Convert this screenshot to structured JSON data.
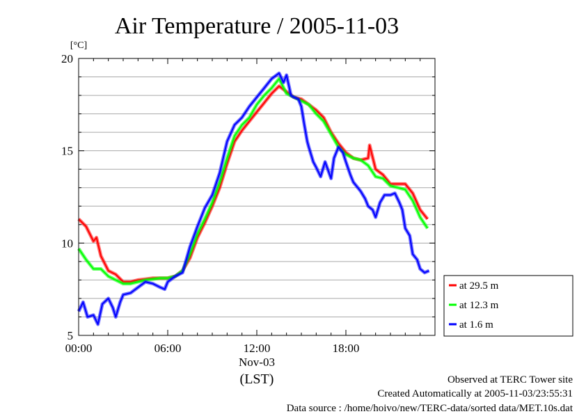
{
  "chart_data": {
    "type": "line",
    "title": "Air Temperature / 2005-11-03",
    "ylabel": "[°C]",
    "xlabel": "(LST)",
    "xlim": [
      0,
      24
    ],
    "ylim": [
      5,
      20
    ],
    "yticks": [
      5,
      10,
      15,
      20
    ],
    "ytick_labels": [
      "5",
      "10",
      "15",
      "20"
    ],
    "xticks": [
      0,
      6,
      12,
      18
    ],
    "xtick_labels": [
      "00:00",
      "06:00",
      "12:00",
      "18:00"
    ],
    "date_label": "Nov-03",
    "grid": true,
    "legend_position": "right",
    "series": [
      {
        "name": "at 29.5 m",
        "color": "#ff0000",
        "x": [
          0,
          0.5,
          1.0,
          1.2,
          1.5,
          2.0,
          2.5,
          3.0,
          3.5,
          4.0,
          4.5,
          5.0,
          5.5,
          6.0,
          6.5,
          7.0,
          7.5,
          8.0,
          8.5,
          9.0,
          9.5,
          10.0,
          10.5,
          11.0,
          11.5,
          12.0,
          12.5,
          13.0,
          13.5,
          14.0,
          14.5,
          15.0,
          15.5,
          16.0,
          16.5,
          17.0,
          17.5,
          18.0,
          18.5,
          19.0,
          19.5,
          19.6,
          20.0,
          20.5,
          21.0,
          21.5,
          22.0,
          22.5,
          23.0,
          23.5
        ],
        "values": [
          11.3,
          10.9,
          10.1,
          10.3,
          9.3,
          8.5,
          8.3,
          7.9,
          7.9,
          8.0,
          8.05,
          8.1,
          8.1,
          8.1,
          8.2,
          8.5,
          9.2,
          10.3,
          11.1,
          12.0,
          13.0,
          14.3,
          15.5,
          16.1,
          16.6,
          17.1,
          17.6,
          18.1,
          18.5,
          18.2,
          17.9,
          17.8,
          17.5,
          17.2,
          16.8,
          16.0,
          15.4,
          14.9,
          14.6,
          14.5,
          14.6,
          15.3,
          14.0,
          13.7,
          13.2,
          13.2,
          13.2,
          12.7,
          11.8,
          11.3
        ]
      },
      {
        "name": "at 12.3 m",
        "color": "#00ff00",
        "x": [
          0,
          0.5,
          1.0,
          1.5,
          2.0,
          2.5,
          3.0,
          3.5,
          4.0,
          4.5,
          5.0,
          5.5,
          6.0,
          6.5,
          7.0,
          7.5,
          8.0,
          8.5,
          9.0,
          9.5,
          10.0,
          10.5,
          11.0,
          11.5,
          12.0,
          12.5,
          13.0,
          13.5,
          14.0,
          14.5,
          15.0,
          15.5,
          16.0,
          16.5,
          17.0,
          17.5,
          18.0,
          18.5,
          19.0,
          19.5,
          20.0,
          20.5,
          21.0,
          21.5,
          22.0,
          22.5,
          23.0,
          23.5
        ],
        "values": [
          9.7,
          9.1,
          8.6,
          8.6,
          8.2,
          8.0,
          7.8,
          7.8,
          7.9,
          8.0,
          8.05,
          8.1,
          8.1,
          8.2,
          8.5,
          9.4,
          10.5,
          11.3,
          12.2,
          13.3,
          14.6,
          15.8,
          16.4,
          16.8,
          17.5,
          18.0,
          18.4,
          18.9,
          18.1,
          17.9,
          17.7,
          17.5,
          17.0,
          16.6,
          15.9,
          15.2,
          14.8,
          14.6,
          14.5,
          14.2,
          13.6,
          13.5,
          13.1,
          13.0,
          12.9,
          12.3,
          11.4,
          10.8
        ]
      },
      {
        "name": "at 1.6 m",
        "color": "#0000ff",
        "x": [
          0,
          0.3,
          0.6,
          1.0,
          1.3,
          1.6,
          2.0,
          2.3,
          2.5,
          2.8,
          3.0,
          3.5,
          4.0,
          4.5,
          5.0,
          5.5,
          5.8,
          6.0,
          6.5,
          7.0,
          7.5,
          8.0,
          8.5,
          9.0,
          9.5,
          10.0,
          10.5,
          11.0,
          11.5,
          12.0,
          12.5,
          13.0,
          13.5,
          13.8,
          14.0,
          14.3,
          14.5,
          14.8,
          15.0,
          15.2,
          15.4,
          15.5,
          15.8,
          16.0,
          16.3,
          16.6,
          17.0,
          17.2,
          17.5,
          17.8,
          18.0,
          18.3,
          18.5,
          18.8,
          19.0,
          19.3,
          19.5,
          19.8,
          20.0,
          20.3,
          20.6,
          21.0,
          21.3,
          21.6,
          21.8,
          22.0,
          22.3,
          22.5,
          22.8,
          23.0,
          23.3,
          23.6
        ],
        "values": [
          6.3,
          6.8,
          6.0,
          6.1,
          5.6,
          6.7,
          7.0,
          6.5,
          6.0,
          6.8,
          7.2,
          7.3,
          7.6,
          7.9,
          7.8,
          7.6,
          7.5,
          7.9,
          8.2,
          8.4,
          9.8,
          10.9,
          11.9,
          12.6,
          13.8,
          15.5,
          16.4,
          16.8,
          17.4,
          17.9,
          18.4,
          18.9,
          19.2,
          18.7,
          19.1,
          18.0,
          17.9,
          17.8,
          17.4,
          16.4,
          15.5,
          15.2,
          14.4,
          14.1,
          13.6,
          14.4,
          13.5,
          14.6,
          15.2,
          14.9,
          14.4,
          13.7,
          13.3,
          13.0,
          12.8,
          12.4,
          12.0,
          11.8,
          11.4,
          12.2,
          12.6,
          12.6,
          12.7,
          12.2,
          11.8,
          10.8,
          10.4,
          9.4,
          9.1,
          8.6,
          8.4,
          8.5
        ]
      }
    ]
  },
  "footer": {
    "line1": "Observed at TERC Tower site",
    "line2": "Created Automatically at 2005-11-03/23:55:31",
    "line3": "Data source : /home/hoivo/new/TERC-data/sorted  data/MET.10s.dat"
  }
}
